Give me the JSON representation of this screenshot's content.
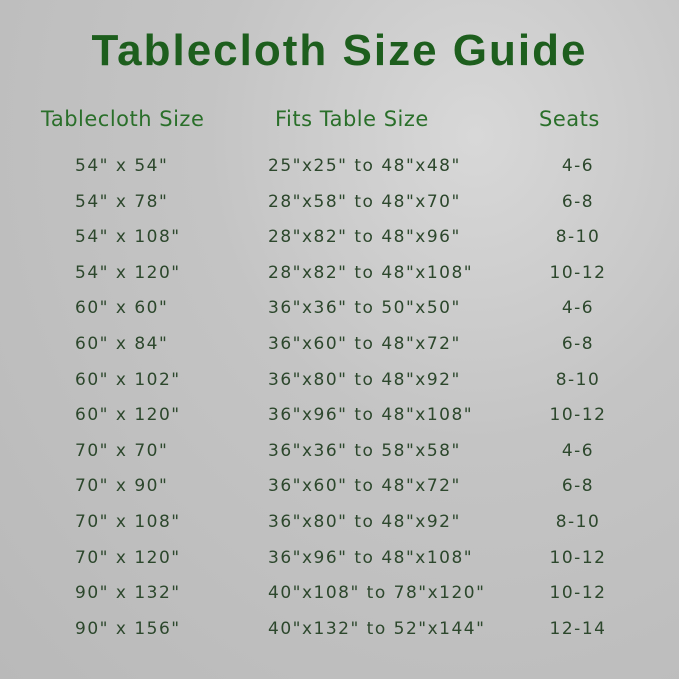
{
  "title": "Tablecloth Size Guide",
  "headers": {
    "size": "Tablecloth Size",
    "fits": "Fits Table Size",
    "seats": "Seats"
  },
  "rows": [
    {
      "size": "54\" x 54\"",
      "fits": "25\"x25\" to 48\"x48\"",
      "seats": "4-6"
    },
    {
      "size": "54\" x 78\"",
      "fits": "28\"x58\" to 48\"x70\"",
      "seats": "6-8"
    },
    {
      "size": "54\" x 108\"",
      "fits": "28\"x82\" to 48\"x96\"",
      "seats": "8-10"
    },
    {
      "size": "54\" x 120\"",
      "fits": "28\"x82\" to 48\"x108\"",
      "seats": "10-12"
    },
    {
      "size": "60\" x 60\"",
      "fits": "36\"x36\" to 50\"x50\"",
      "seats": "4-6"
    },
    {
      "size": "60\" x 84\"",
      "fits": "36\"x60\" to 48\"x72\"",
      "seats": "6-8"
    },
    {
      "size": "60\" x 102\"",
      "fits": "36\"x80\" to 48\"x92\"",
      "seats": "8-10"
    },
    {
      "size": "60\" x 120\"",
      "fits": "36\"x96\" to 48\"x108\"",
      "seats": "10-12"
    },
    {
      "size": "70\" x 70\"",
      "fits": "36\"x36\" to 58\"x58\"",
      "seats": "4-6"
    },
    {
      "size": "70\" x 90\"",
      "fits": "36\"x60\" to 48\"x72\"",
      "seats": "6-8"
    },
    {
      "size": "70\" x 108\"",
      "fits": "36\"x80\" to 48\"x92\"",
      "seats": "8-10"
    },
    {
      "size": "70\" x 120\"",
      "fits": "36\"x96\" to 48\"x108\"",
      "seats": "10-12"
    },
    {
      "size": "90\" x 132\"",
      "fits": "40\"x108\" to 78\"x120\"",
      "seats": "10-12"
    },
    {
      "size": "90\" x 156\"",
      "fits": "40\"x132\" to 52\"x144\"",
      "seats": "12-14"
    }
  ],
  "colors": {
    "title": "#1d5e1d",
    "header": "#2a6f2a",
    "body": "#2c472c"
  }
}
